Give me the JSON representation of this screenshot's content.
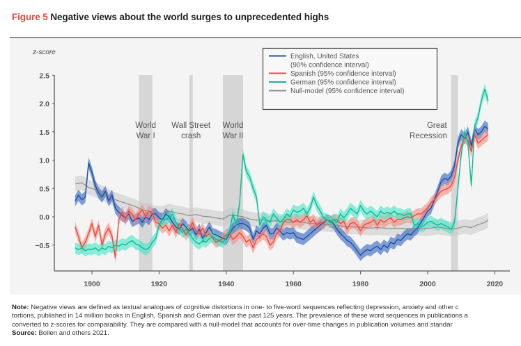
{
  "figure": {
    "number_label": "Figure 5",
    "title": "Negative views about the world surges to unprecedented highs"
  },
  "notes": {
    "note_label": "Note:",
    "note_lines": [
      "Negative views are defined as textual analogues of cognitive distortions in one- to five-word sequences reflecting depression, anxiety and other c",
      "tortions, published in 14 million books in English, Spanish and German over the past 125 years. The prevalence of these word sequences in publications a",
      "converted to z-scores for comparability. They are compared with a null-model that accounts for over-time changes in publication volumes and standar"
    ],
    "source_label": "Source:",
    "source_text": "Bollen and others 2021."
  },
  "chart_data": {
    "type": "line",
    "title": "Negative views about the world surges to unprecedented highs",
    "xlabel": "",
    "ylabel": "z-score",
    "xlim": [
      1892,
      2024
    ],
    "ylim": [
      -0.95,
      2.5
    ],
    "xticks": [
      1900,
      1920,
      1940,
      1960,
      1980,
      2000,
      2020
    ],
    "yticks": [
      2.5,
      2.0,
      1.5,
      1.0,
      0.5,
      0.0,
      -0.5
    ],
    "ytick_labels": [
      "2.5",
      "2.0",
      "1.5",
      "1.0",
      "0.5",
      "0.0",
      "−0.5"
    ],
    "grid": false,
    "legend_position": "top-center",
    "events": [
      {
        "label": [
          "World",
          "War I"
        ],
        "start": 1914,
        "end": 1918
      },
      {
        "label": [
          "Wall Street",
          "crash"
        ],
        "start": 1929,
        "end": 1930
      },
      {
        "label": [
          "World",
          "War II"
        ],
        "start": 1939,
        "end": 1945
      },
      {
        "label": [
          "Great",
          "Recession"
        ],
        "start": 2007,
        "end": 2009
      }
    ],
    "series": [
      {
        "name": "Null-model",
        "legend": [
          "Null-model (95% confidence interval)"
        ],
        "color": "#8c8c8c",
        "band_color": "#c8c8c8",
        "ci": 0.13,
        "x": [
          1895,
          1897,
          1899,
          1901,
          1903,
          1905,
          1907,
          1909,
          1911,
          1913,
          1915,
          1917,
          1919,
          1921,
          1923,
          1925,
          1927,
          1929,
          1931,
          1933,
          1935,
          1937,
          1939,
          1941,
          1943,
          1945,
          1947,
          1949,
          1951,
          1953,
          1955,
          1957,
          1959,
          1961,
          1963,
          1965,
          1967,
          1969,
          1971,
          1973,
          1975,
          1977,
          1979,
          1981,
          1983,
          1985,
          1987,
          1989,
          1991,
          1993,
          1995,
          1997,
          1999,
          2001,
          2003,
          2005,
          2007,
          2009,
          2011,
          2013,
          2015,
          2017,
          2018
        ],
        "y": [
          0.58,
          0.6,
          0.52,
          0.48,
          0.42,
          0.36,
          0.3,
          0.26,
          0.22,
          0.18,
          0.12,
          0.1,
          0.07,
          0.06,
          0.1,
          0.07,
          0.05,
          0.02,
          0.04,
          0.01,
          0.0,
          -0.02,
          -0.04,
          0.03,
          0.02,
          0.0,
          -0.04,
          -0.06,
          -0.05,
          -0.08,
          -0.07,
          -0.09,
          -0.1,
          -0.08,
          -0.1,
          -0.12,
          -0.12,
          -0.13,
          -0.14,
          -0.15,
          -0.17,
          -0.18,
          -0.18,
          -0.19,
          -0.2,
          -0.19,
          -0.2,
          -0.21,
          -0.2,
          -0.21,
          -0.21,
          -0.2,
          -0.21,
          -0.2,
          -0.18,
          -0.2,
          -0.22,
          -0.2,
          -0.17,
          -0.19,
          -0.14,
          -0.1,
          -0.06
        ]
      },
      {
        "name": "English, United States",
        "legend": [
          "English, United States",
          "(90% confidence interval)"
        ],
        "color": "#1f4fa0",
        "band_color": "#2e62c0",
        "ci": 0.1,
        "x": [
          1895,
          1896,
          1897,
          1898,
          1899,
          1900,
          1901,
          1902,
          1903,
          1904,
          1905,
          1906,
          1907,
          1908,
          1909,
          1910,
          1911,
          1912,
          1913,
          1914,
          1915,
          1916,
          1917,
          1918,
          1919,
          1920,
          1921,
          1922,
          1923,
          1924,
          1925,
          1926,
          1927,
          1928,
          1929,
          1930,
          1931,
          1932,
          1933,
          1934,
          1935,
          1936,
          1937,
          1938,
          1939,
          1940,
          1941,
          1942,
          1943,
          1944,
          1945,
          1946,
          1947,
          1948,
          1949,
          1950,
          1951,
          1952,
          1953,
          1954,
          1955,
          1956,
          1957,
          1958,
          1959,
          1960,
          1961,
          1962,
          1963,
          1964,
          1965,
          1966,
          1967,
          1968,
          1969,
          1970,
          1971,
          1972,
          1973,
          1974,
          1975,
          1976,
          1977,
          1978,
          1979,
          1980,
          1981,
          1982,
          1983,
          1984,
          1985,
          1986,
          1987,
          1988,
          1989,
          1990,
          1991,
          1992,
          1993,
          1994,
          1995,
          1996,
          1997,
          1998,
          1999,
          2000,
          2001,
          2002,
          2003,
          2004,
          2005,
          2006,
          2007,
          2008,
          2009,
          2010,
          2011,
          2012,
          2013,
          2014,
          2015,
          2016,
          2017,
          2018
        ],
        "y": [
          0.28,
          0.38,
          0.3,
          0.35,
          0.95,
          0.78,
          0.55,
          0.42,
          0.35,
          0.45,
          0.28,
          0.38,
          0.15,
          0.08,
          0.02,
          -0.02,
          0.05,
          -0.08,
          -0.05,
          -0.02,
          -0.1,
          0.0,
          -0.05,
          0.05,
          0.05,
          -0.02,
          -0.05,
          0.05,
          0.0,
          -0.1,
          -0.18,
          -0.22,
          -0.12,
          -0.18,
          -0.25,
          -0.2,
          -0.32,
          -0.22,
          -0.38,
          -0.28,
          -0.18,
          -0.3,
          -0.32,
          -0.35,
          -0.38,
          -0.4,
          -0.3,
          -0.2,
          -0.15,
          -0.12,
          -0.12,
          -0.15,
          -0.2,
          -0.4,
          -0.25,
          -0.3,
          -0.2,
          -0.15,
          -0.3,
          -0.3,
          -0.2,
          -0.25,
          -0.32,
          -0.28,
          -0.3,
          -0.28,
          -0.36,
          -0.38,
          -0.4,
          -0.35,
          -0.3,
          -0.25,
          -0.2,
          -0.15,
          -0.1,
          -0.05,
          -0.08,
          -0.12,
          -0.22,
          -0.3,
          -0.35,
          -0.42,
          -0.45,
          -0.52,
          -0.6,
          -0.68,
          -0.62,
          -0.58,
          -0.6,
          -0.55,
          -0.52,
          -0.58,
          -0.5,
          -0.55,
          -0.45,
          -0.48,
          -0.4,
          -0.42,
          -0.35,
          -0.3,
          -0.32,
          -0.25,
          -0.2,
          -0.1,
          0.0,
          0.1,
          0.15,
          0.3,
          0.45,
          0.62,
          0.68,
          0.65,
          0.72,
          0.9,
          1.3,
          1.45,
          1.38,
          1.5,
          1.25,
          1.55,
          1.45,
          1.5,
          1.6,
          1.55
        ]
      },
      {
        "name": "Spanish",
        "legend": [
          "Spanish (95% confidence interval)"
        ],
        "color": "#f0483a",
        "band_color": "#f58a80",
        "ci": 0.1,
        "x": [
          1895,
          1896,
          1897,
          1898,
          1899,
          1900,
          1901,
          1902,
          1903,
          1904,
          1905,
          1906,
          1907,
          1908,
          1909,
          1910,
          1911,
          1912,
          1913,
          1914,
          1915,
          1916,
          1917,
          1918,
          1919,
          1920,
          1921,
          1922,
          1923,
          1924,
          1925,
          1926,
          1927,
          1928,
          1929,
          1930,
          1931,
          1932,
          1933,
          1934,
          1935,
          1936,
          1937,
          1938,
          1939,
          1940,
          1941,
          1942,
          1943,
          1944,
          1945,
          1946,
          1947,
          1948,
          1949,
          1950,
          1951,
          1952,
          1953,
          1954,
          1955,
          1956,
          1957,
          1958,
          1959,
          1960,
          1961,
          1962,
          1963,
          1964,
          1965,
          1966,
          1967,
          1968,
          1969,
          1970,
          1971,
          1972,
          1973,
          1974,
          1975,
          1976,
          1977,
          1978,
          1979,
          1980,
          1981,
          1982,
          1983,
          1984,
          1985,
          1986,
          1987,
          1988,
          1989,
          1990,
          1991,
          1992,
          1993,
          1994,
          1995,
          1996,
          1997,
          1998,
          1999,
          2000,
          2001,
          2002,
          2003,
          2004,
          2005,
          2006,
          2007,
          2008,
          2009,
          2010,
          2011,
          2012,
          2013,
          2014,
          2015,
          2016,
          2017,
          2018
        ],
        "y": [
          -0.18,
          -0.35,
          -0.55,
          -0.45,
          -0.3,
          -0.12,
          -0.35,
          -0.15,
          -0.5,
          -0.3,
          -0.2,
          -0.35,
          -0.72,
          -0.05,
          0.08,
          -0.05,
          0.1,
          0.05,
          -0.05,
          0.05,
          0.12,
          0.0,
          0.1,
          0.05,
          -0.1,
          -0.12,
          -0.2,
          -0.15,
          -0.25,
          -0.15,
          -0.28,
          -0.12,
          -0.22,
          -0.32,
          -0.22,
          -0.1,
          -0.25,
          -0.3,
          -0.2,
          -0.35,
          -0.3,
          -0.38,
          -0.45,
          -0.42,
          -0.38,
          -0.32,
          -0.3,
          -0.4,
          -0.35,
          -0.28,
          -0.35,
          -0.45,
          -0.4,
          -0.55,
          -0.4,
          -0.35,
          -0.3,
          -0.35,
          -0.5,
          -0.45,
          -0.3,
          -0.25,
          -0.1,
          -0.05,
          -0.05,
          -0.1,
          -0.05,
          -0.1,
          -0.05,
          0.02,
          -0.1,
          -0.05,
          -0.15,
          -0.1,
          -0.12,
          -0.05,
          -0.1,
          -0.05,
          -0.05,
          -0.12,
          -0.08,
          -0.22,
          -0.12,
          -0.1,
          -0.15,
          -0.25,
          -0.15,
          -0.12,
          -0.1,
          -0.05,
          -0.15,
          -0.05,
          -0.1,
          -0.05,
          -0.02,
          -0.1,
          -0.05,
          -0.05,
          -0.02,
          0.0,
          -0.02,
          0.02,
          0.05,
          0.05,
          0.1,
          0.15,
          0.25,
          0.3,
          0.38,
          0.45,
          0.48,
          0.5,
          0.55,
          0.7,
          1.0,
          1.25,
          1.4,
          1.35,
          1.15,
          1.45,
          1.3,
          1.35,
          1.4,
          1.45
        ]
      },
      {
        "name": "German",
        "legend": [
          "German (95% confidence interval)"
        ],
        "color": "#14b894",
        "band_color": "#3fe6c4",
        "ci": 0.1,
        "x": [
          1895,
          1896,
          1897,
          1898,
          1899,
          1900,
          1901,
          1902,
          1903,
          1904,
          1905,
          1906,
          1907,
          1908,
          1909,
          1910,
          1911,
          1912,
          1913,
          1914,
          1915,
          1916,
          1917,
          1918,
          1919,
          1920,
          1921,
          1922,
          1923,
          1924,
          1925,
          1926,
          1927,
          1928,
          1929,
          1930,
          1931,
          1932,
          1933,
          1934,
          1935,
          1936,
          1937,
          1938,
          1939,
          1940,
          1941,
          1942,
          1943,
          1944,
          1945,
          1946,
          1947,
          1948,
          1949,
          1950,
          1951,
          1952,
          1953,
          1954,
          1955,
          1956,
          1957,
          1958,
          1959,
          1960,
          1961,
          1962,
          1963,
          1964,
          1965,
          1966,
          1967,
          1968,
          1969,
          1970,
          1971,
          1972,
          1973,
          1974,
          1975,
          1976,
          1977,
          1978,
          1979,
          1980,
          1981,
          1982,
          1983,
          1984,
          1985,
          1986,
          1987,
          1988,
          1989,
          1990,
          1991,
          1992,
          1993,
          1994,
          1995,
          1996,
          1997,
          1998,
          1999,
          2000,
          2001,
          2002,
          2003,
          2004,
          2005,
          2006,
          2007,
          2008,
          2009,
          2010,
          2011,
          2012,
          2013,
          2014,
          2015,
          2016,
          2017,
          2018
        ],
        "y": [
          -0.55,
          -0.58,
          -0.55,
          -0.6,
          -0.57,
          -0.58,
          -0.55,
          -0.6,
          -0.55,
          -0.58,
          -0.52,
          -0.55,
          -0.5,
          -0.52,
          -0.48,
          -0.5,
          -0.45,
          -0.42,
          -0.48,
          -0.5,
          -0.55,
          -0.58,
          -0.55,
          -0.45,
          -0.38,
          -0.15,
          -0.05,
          -0.05,
          -0.02,
          0.05,
          -0.1,
          -0.2,
          -0.28,
          -0.22,
          -0.3,
          -0.38,
          -0.45,
          -0.48,
          -0.42,
          -0.45,
          -0.38,
          -0.35,
          -0.4,
          -0.42,
          -0.45,
          -0.38,
          -0.25,
          0.05,
          -0.15,
          0.25,
          1.1,
          0.8,
          0.7,
          0.5,
          0.35,
          -0.15,
          0.0,
          -0.05,
          -0.1,
          0.05,
          -0.02,
          -0.1,
          -0.05,
          0.05,
          0.0,
          0.12,
          0.08,
          0.1,
          0.15,
          0.05,
          0.15,
          0.35,
          0.2,
          0.1,
          -0.02,
          -0.05,
          -0.1,
          -0.05,
          -0.1,
          0.05,
          -0.02,
          0.05,
          0.15,
          0.1,
          0.05,
          0.2,
          0.1,
          0.05,
          0.1,
          0.05,
          0.0,
          0.1,
          0.05,
          0.08,
          0.05,
          0.1,
          0.05,
          0.05,
          0.02,
          0.05,
          0.05,
          -0.15,
          -0.12,
          -0.18,
          -0.15,
          -0.1,
          -0.08,
          -0.12,
          -0.15,
          -0.12,
          -0.15,
          -0.18,
          -0.22,
          -0.1,
          0.5,
          1.1,
          1.5,
          1.3,
          0.55,
          1.6,
          1.75,
          2.05,
          2.25,
          2.05
        ]
      }
    ]
  }
}
